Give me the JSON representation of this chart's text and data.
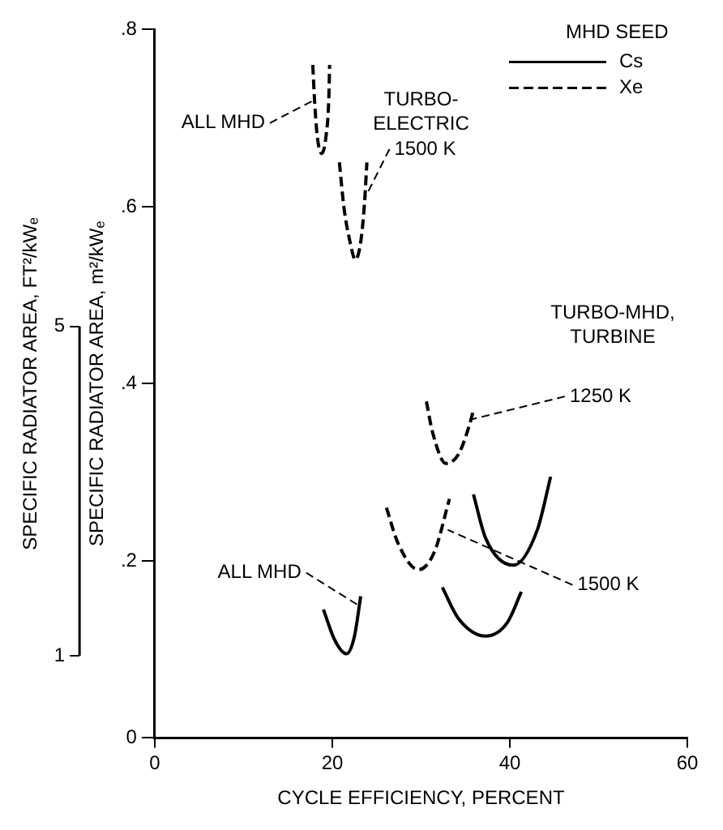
{
  "chart_data": {
    "type": "line",
    "xlabel": "CYCLE EFFICIENCY, PERCENT",
    "ylabel": "SPECIFIC RADIATOR AREA, m²/kWₑ",
    "y2label": "SPECIFIC RADIATOR AREA, FT²/kWₑ",
    "legend_title": "MHD SEED",
    "xlim": [
      0,
      60
    ],
    "xticks": [
      0,
      20,
      40,
      60
    ],
    "ylim": [
      0,
      0.8
    ],
    "yticks": [
      0,
      {
        "value": 0.2,
        "label": ".2"
      },
      {
        "value": 0.4,
        "label": ".4"
      },
      {
        "value": 0.6,
        "label": ".6"
      },
      {
        "value": 0.8,
        "label": ".8"
      }
    ],
    "y2lim": [
      0,
      8.61
    ],
    "y2ticks": [
      1,
      5
    ],
    "grid": false,
    "legend": "top right",
    "marker": "none",
    "series": [
      {
        "name": "Cs",
        "color": "#000000",
        "line_style": "solid",
        "x": [
          19.0,
          20.3,
          21.6,
          22.5,
          23.2,
          null,
          32.4,
          34.2,
          37.3,
          39.7,
          41.3,
          null,
          35.9,
          37.3,
          40.4,
          43.1,
          44.6
        ],
        "values": [
          0.145,
          0.11,
          0.095,
          0.115,
          0.16,
          null,
          0.17,
          0.135,
          0.115,
          0.13,
          0.165,
          null,
          0.275,
          0.225,
          0.195,
          0.235,
          0.295
        ]
      },
      {
        "name": "Xe",
        "color": "#000000",
        "line_style": "dashed",
        "x": [
          17.8,
          18.0,
          18.3,
          18.8,
          19.3,
          19.6,
          19.7,
          null,
          20.8,
          21.3,
          22.0,
          22.6,
          23.2,
          23.6,
          23.9,
          null,
          26.1,
          27.4,
          29.7,
          31.5,
          33.2,
          null,
          30.6,
          31.3,
          32.8,
          34.2,
          35.5,
          35.9
        ],
        "values": [
          0.76,
          0.72,
          0.68,
          0.66,
          0.68,
          0.72,
          0.76,
          null,
          0.65,
          0.6,
          0.56,
          0.54,
          0.56,
          0.6,
          0.65,
          null,
          0.26,
          0.22,
          0.19,
          0.21,
          0.27,
          null,
          0.38,
          0.345,
          0.31,
          0.32,
          0.355,
          0.37
        ]
      }
    ],
    "annotations": [
      {
        "text": "ALL MHD",
        "x": 17.9,
        "y": 0.72
      },
      "TURBO-\nELECTRIC",
      {
        "text": "1500 K",
        "x": 23.7,
        "y": 0.61
      },
      "TURBO-MHD,\nTURBINE",
      {
        "text": "1250 K",
        "x": 35.8,
        "y": 0.36
      },
      {
        "text": "1500 K",
        "x": 33.0,
        "y": 0.235
      },
      {
        "text": "ALL MHD",
        "x": 22.9,
        "y": 0.15
      }
    ]
  }
}
